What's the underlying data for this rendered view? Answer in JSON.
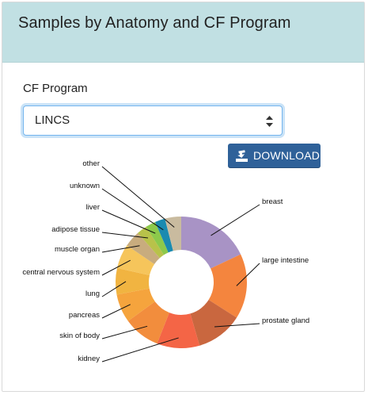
{
  "card": {
    "title": "Samples by Anatomy and CF Program"
  },
  "filter": {
    "label": "CF Program",
    "selected": "LINCS"
  },
  "download": {
    "label": "DOWNLOAD",
    "icon": "download-icon"
  },
  "chart_data": {
    "type": "pie",
    "donut": true,
    "legend": "none (leader-line labels)",
    "slices": [
      {
        "label": "breast",
        "value": 18.0,
        "color": "#a893c5"
      },
      {
        "label": "large intestine",
        "value": 16.0,
        "color": "#f4853e"
      },
      {
        "label": "prostate gland",
        "value": 11.5,
        "color": "#c9673f"
      },
      {
        "label": "kidney",
        "value": 10.5,
        "color": "#f46546"
      },
      {
        "label": "skin of body",
        "value": 9.0,
        "color": "#f28d3d"
      },
      {
        "label": "pancreas",
        "value": 7.0,
        "color": "#f5a43d"
      },
      {
        "label": "lung",
        "value": 6.5,
        "color": "#f1b441"
      },
      {
        "label": "central nervous system",
        "value": 6.0,
        "color": "#f6c55b"
      },
      {
        "label": "muscle organ",
        "value": 4.0,
        "color": "#c8ac7e"
      },
      {
        "label": "adipose tissue",
        "value": 2.5,
        "color": "#b8c24a"
      },
      {
        "label": "liver",
        "value": 2.5,
        "color": "#8cc94b"
      },
      {
        "label": "unknown",
        "value": 2.5,
        "color": "#1a8ab0"
      },
      {
        "label": "other",
        "value": 4.0,
        "color": "#c9bb9f"
      }
    ]
  }
}
